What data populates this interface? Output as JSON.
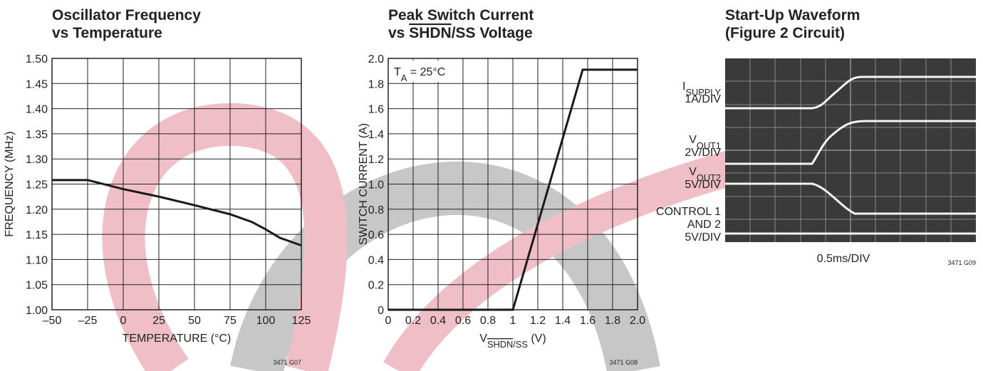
{
  "chart_data": [
    {
      "type": "line",
      "title": [
        [
          "Oscillator Frequency"
        ],
        [
          "vs Temperature"
        ]
      ],
      "x_label": [
        "TEMPERATURE (°C)"
      ],
      "y_label": [
        "FREQUENCY (MHz)"
      ],
      "x": [
        -50,
        -25,
        0,
        25,
        50,
        75,
        90,
        100,
        110,
        125
      ],
      "values": [
        1.258,
        1.258,
        1.24,
        1.225,
        1.208,
        1.19,
        1.175,
        1.16,
        1.143,
        1.128
      ],
      "color": "#1a1a1a",
      "xlim": [
        -50,
        125
      ],
      "xticks": [
        {
          "value": -50,
          "label": "–50"
        },
        {
          "value": -25,
          "label": "–25"
        },
        0,
        25,
        50,
        75,
        100,
        125
      ],
      "ylim": [
        1.0,
        1.5
      ],
      "yticks": [
        {
          "value": 1.0,
          "label": "1.00"
        },
        {
          "value": 1.05,
          "label": "1.05"
        },
        {
          "value": 1.1,
          "label": "1.10"
        },
        {
          "value": 1.15,
          "label": "1.15"
        },
        {
          "value": 1.2,
          "label": "1.20"
        },
        {
          "value": 1.25,
          "label": "1.25"
        },
        {
          "value": 1.3,
          "label": "1.30"
        },
        {
          "value": 1.35,
          "label": "1.35"
        },
        {
          "value": 1.4,
          "label": "1.40"
        },
        {
          "value": 1.45,
          "label": "1.45"
        },
        {
          "value": 1.5,
          "label": "1.50"
        }
      ],
      "grid": true,
      "footnote": "3471 G07"
    },
    {
      "type": "line",
      "title": [
        [
          "Peak Switch Current"
        ],
        [
          "vs ",
          {
            "text": "SHDN",
            "overline": true
          },
          "/SS Voltage"
        ]
      ],
      "x_label": [
        "V",
        {
          "text": "SHDN",
          "sub": true,
          "overline": true
        },
        {
          "text": "/SS",
          "sub": true
        },
        " (V)"
      ],
      "y_label": [
        "SWITCH CURRENT (A)"
      ],
      "annotation": [
        "T",
        {
          "text": "A",
          "sub": true
        },
        " = 25°C"
      ],
      "x": [
        0,
        1.0,
        1.56,
        2.0
      ],
      "values": [
        0,
        0,
        1.91,
        1.91
      ],
      "color": "#1a1a1a",
      "xlim": [
        0,
        2.0
      ],
      "xticks": [
        0,
        0.2,
        0.4,
        0.6,
        0.8,
        1,
        1.2,
        1.4,
        1.6,
        1.8,
        {
          "value": 2.0,
          "label": "2.0"
        }
      ],
      "ylim": [
        0,
        2.0
      ],
      "yticks": [
        0,
        0.2,
        0.4,
        0.6,
        0.8,
        {
          "value": 1.0,
          "label": "1.0"
        },
        1.2,
        1.4,
        1.6,
        1.8,
        {
          "value": 2.0,
          "label": "2.0"
        }
      ],
      "grid": true,
      "footnote": "3471 G08"
    },
    {
      "type": "oscilloscope",
      "title": [
        [
          "Start-Up Waveform"
        ],
        [
          "(Figure 2 Circuit)"
        ]
      ],
      "trace_labels": [
        [
          [
            "I",
            {
              "text": "SUPPLY",
              "sub": true
            }
          ],
          [
            "1A/DIV"
          ]
        ],
        [
          [
            "V",
            {
              "text": "OUT1",
              "sub": true
            }
          ],
          [
            "2V/DIV"
          ]
        ],
        [
          [
            "V",
            {
              "text": "OUT2",
              "sub": true
            }
          ],
          [
            "5V/DIV"
          ]
        ],
        [
          [
            "CONTROL 1"
          ],
          [
            "AND 2"
          ],
          [
            "5V/DIV"
          ]
        ]
      ],
      "x_label": [
        "0.5ms/DIV"
      ],
      "footnote": "3471 G09"
    }
  ]
}
